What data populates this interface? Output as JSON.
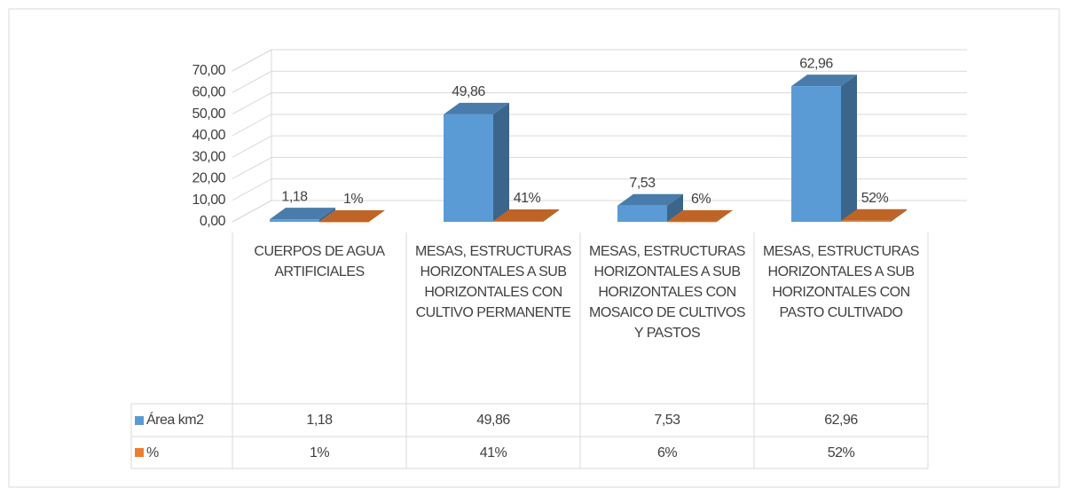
{
  "chart_data": {
    "type": "bar3d",
    "categories": [
      "CUERPOS DE AGUA ARTIFICIALES",
      "MESAS, ESTRUCTURAS HORIZONTALES A SUB HORIZONTALES CON CULTIVO PERMANENTE",
      "MESAS, ESTRUCTURAS HORIZONTALES A SUB HORIZONTALES CON MOSAICO DE CULTIVOS Y PASTOS",
      "MESAS, ESTRUCTURAS HORIZONTALES A SUB HORIZONTALES CON PASTO CULTIVADO"
    ],
    "series": [
      {
        "name": "Área km2",
        "color": "#5b9bd5",
        "values": [
          1.18,
          49.86,
          7.53,
          62.96
        ],
        "value_labels": [
          "1,18",
          "49,86",
          "7,53",
          "62,96"
        ]
      },
      {
        "name": "%",
        "color": "#ed7d31",
        "values": [
          0.01,
          0.41,
          0.06,
          0.52
        ],
        "value_labels": [
          "1%",
          "41%",
          "6%",
          "52%"
        ]
      }
    ],
    "ylim": [
      0,
      70
    ],
    "yticks": [
      {
        "value": 0,
        "label": "0,00"
      },
      {
        "value": 10,
        "label": "10,00"
      },
      {
        "value": 20,
        "label": "20,00"
      },
      {
        "value": 30,
        "label": "30,00"
      },
      {
        "value": 40,
        "label": "40,00"
      },
      {
        "value": 50,
        "label": "50,00"
      },
      {
        "value": 60,
        "label": "60,00"
      },
      {
        "value": 70,
        "label": "70,00"
      }
    ],
    "grid": true,
    "data_table": true
  }
}
